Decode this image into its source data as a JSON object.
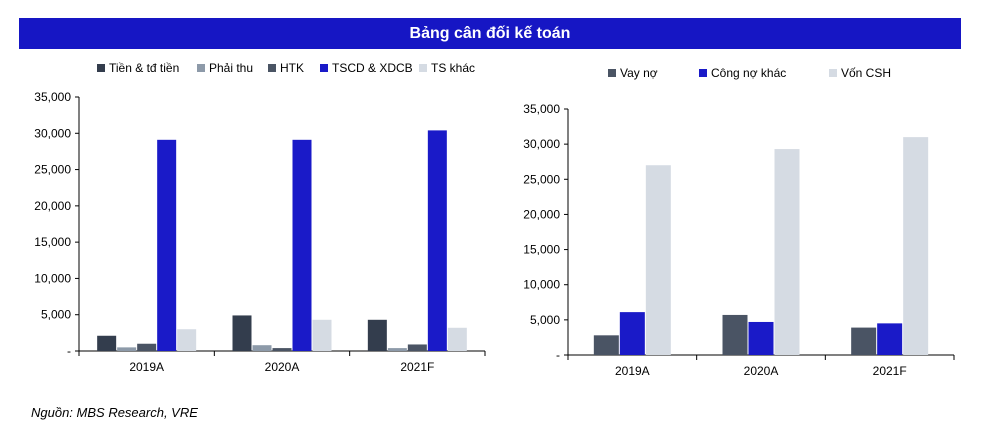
{
  "banner": {
    "title": "Bảng cân đối kế toán"
  },
  "source": "Nguồn: MBS Research, VRE",
  "chart_data": [
    {
      "type": "bar",
      "categories": [
        "2019A",
        "2020A",
        "2021F"
      ],
      "ylim": [
        0,
        35000
      ],
      "yticks": [
        "-",
        "5,000",
        "10,000",
        "15,000",
        "20,000",
        "25,000",
        "30,000",
        "35,000"
      ],
      "legend_position": "top",
      "series": [
        {
          "name": "Tiền & tđ tiền",
          "color": "#333d4d",
          "values": [
            2100,
            4900,
            4300
          ]
        },
        {
          "name": "Phải thu",
          "color": "#8d9aa9",
          "values": [
            500,
            800,
            400
          ]
        },
        {
          "name": "HTK",
          "color": "#4a5464",
          "values": [
            1000,
            400,
            900
          ]
        },
        {
          "name": "TSCD & XDCB",
          "color": "#1a1ac8",
          "values": [
            29100,
            29100,
            30400
          ]
        },
        {
          "name": "TS khác",
          "color": "#d5dbe3",
          "values": [
            3000,
            4300,
            3200
          ]
        }
      ]
    },
    {
      "type": "bar",
      "categories": [
        "2019A",
        "2020A",
        "2021F"
      ],
      "ylim": [
        0,
        35000
      ],
      "yticks": [
        "-",
        "5,000",
        "10,000",
        "15,000",
        "20,000",
        "25,000",
        "30,000",
        "35,000"
      ],
      "legend_position": "top",
      "series": [
        {
          "name": "Vay nợ",
          "color": "#4a5464",
          "values": [
            2800,
            5700,
            3900
          ]
        },
        {
          "name": "Công nợ khác",
          "color": "#1a1ac8",
          "values": [
            6100,
            4700,
            4500
          ]
        },
        {
          "name": "Vốn CSH",
          "color": "#d5dbe3",
          "values": [
            27000,
            29300,
            31000
          ]
        }
      ]
    }
  ]
}
